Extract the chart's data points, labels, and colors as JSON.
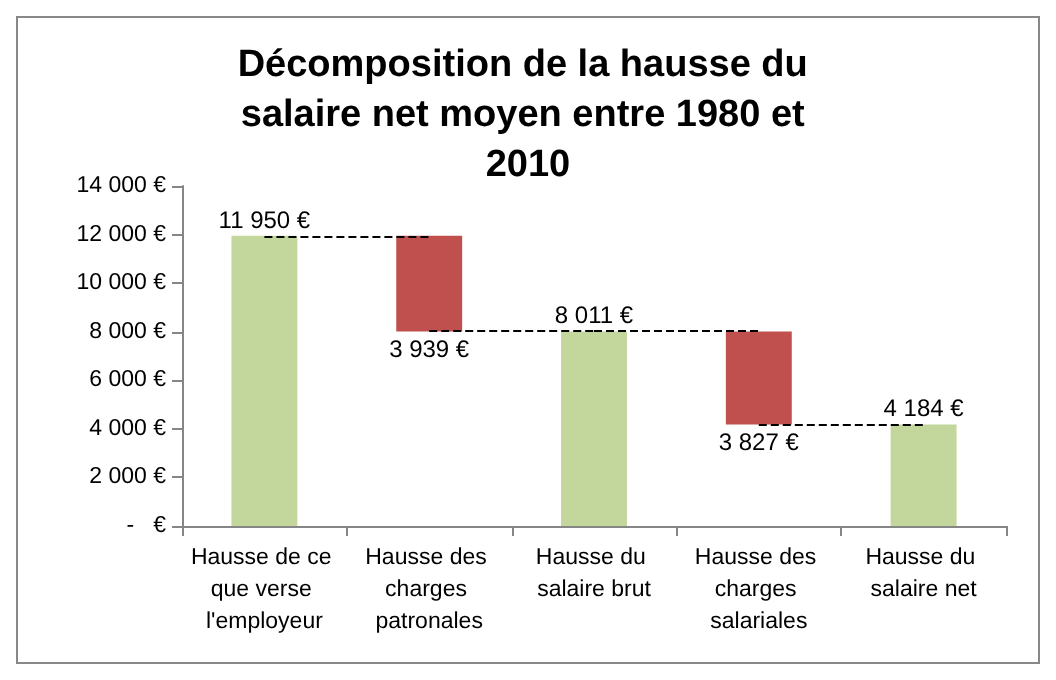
{
  "chart_data": {
    "type": "bar",
    "title": "Décomposition de la hausse du salaire net moyen entre 1980 et 2010",
    "categories": [
      "Hausse de ce que verse l'employeur",
      "Hausse des charges patronales",
      "Hausse du salaire brut",
      "Hausse des charges salariales",
      "Hausse du salaire net"
    ],
    "values": [
      11950,
      3939,
      8011,
      3827,
      4184
    ],
    "base": [
      0,
      8011,
      0,
      4184,
      0
    ],
    "colors": [
      "#c3d69b",
      "#c0504d",
      "#c3d69b",
      "#c0504d",
      "#c3d69b"
    ],
    "value_labels": [
      "11 950 €",
      "3 939 €",
      "8 011 €",
      "3 827 €",
      "4 184 €"
    ],
    "ylim": [
      0,
      14000
    ],
    "yticks": [
      {
        "value": 0,
        "label": "-   €"
      },
      {
        "value": 2000,
        "label": "2 000 €"
      },
      {
        "value": 4000,
        "label": "4 000 €"
      },
      {
        "value": 6000,
        "label": "6 000 €"
      },
      {
        "value": 8000,
        "label": "8 000 €"
      },
      {
        "value": 10000,
        "label": "10 000 €"
      },
      {
        "value": 12000,
        "label": "12 000 €"
      },
      {
        "value": 14000,
        "label": "14 000 €"
      }
    ]
  }
}
